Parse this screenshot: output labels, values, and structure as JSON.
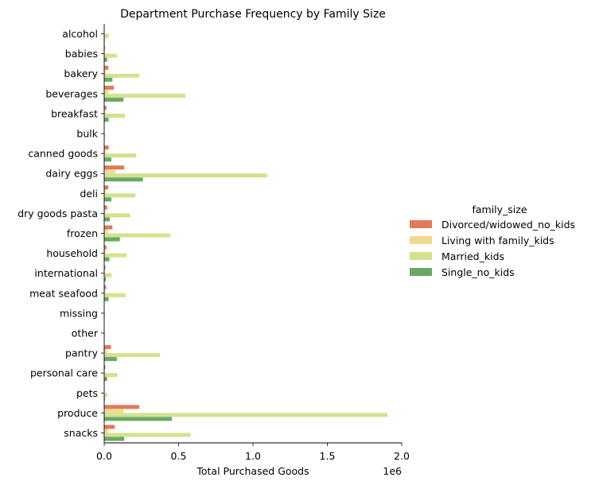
{
  "chart_data": {
    "type": "bar",
    "orientation": "horizontal",
    "title": "Department Purchase Frequency by Family Size",
    "xlabel": "Total Purchased Goods",
    "ylabel": "",
    "x_offset_text": "1e6",
    "xlim": [
      0,
      2000000
    ],
    "x_ticks": [
      0,
      500000,
      1000000,
      1500000,
      2000000
    ],
    "x_tick_labels": [
      "0.0",
      "0.5",
      "1.0",
      "1.5",
      "2.0"
    ],
    "grid": false,
    "legend_placement": "right",
    "legend_title": "family_size",
    "categories": [
      "alcohol",
      "babies",
      "bakery",
      "beverages",
      "breakfast",
      "bulk",
      "canned goods",
      "dairy eggs",
      "deli",
      "dry goods pasta",
      "frozen",
      "household",
      "international",
      "meat seafood",
      "missing",
      "other",
      "pantry",
      "personal care",
      "pets",
      "produce",
      "snacks"
    ],
    "series": [
      {
        "name": "Divorced/widowed_no_kids",
        "color": "#e07a5a",
        "values": [
          2000,
          5000,
          28000,
          65000,
          15000,
          1000,
          30000,
          135000,
          28000,
          20000,
          55000,
          15000,
          8000,
          13000,
          1000,
          1000,
          45000,
          8000,
          3000,
          235000,
          70000
        ]
      },
      {
        "name": "Living with family_kids",
        "color": "#f1d990",
        "values": [
          1500,
          4000,
          12000,
          30000,
          8000,
          500,
          12000,
          75000,
          12000,
          10000,
          25000,
          9000,
          4000,
          8000,
          500,
          500,
          20000,
          4000,
          1500,
          130000,
          30000
        ]
      },
      {
        "name": "Married_kids",
        "color": "#d3e28f",
        "values": [
          30000,
          85000,
          235000,
          545000,
          140000,
          5000,
          215000,
          1095000,
          210000,
          175000,
          445000,
          150000,
          50000,
          145000,
          5000,
          5000,
          375000,
          90000,
          20000,
          1905000,
          580000
        ]
      },
      {
        "name": "Single_no_kids",
        "color": "#6aa865",
        "values": [
          4000,
          20000,
          55000,
          130000,
          30000,
          2000,
          48000,
          260000,
          48000,
          38000,
          105000,
          35000,
          12000,
          30000,
          2000,
          2000,
          85000,
          20000,
          5000,
          455000,
          135000
        ]
      }
    ]
  }
}
